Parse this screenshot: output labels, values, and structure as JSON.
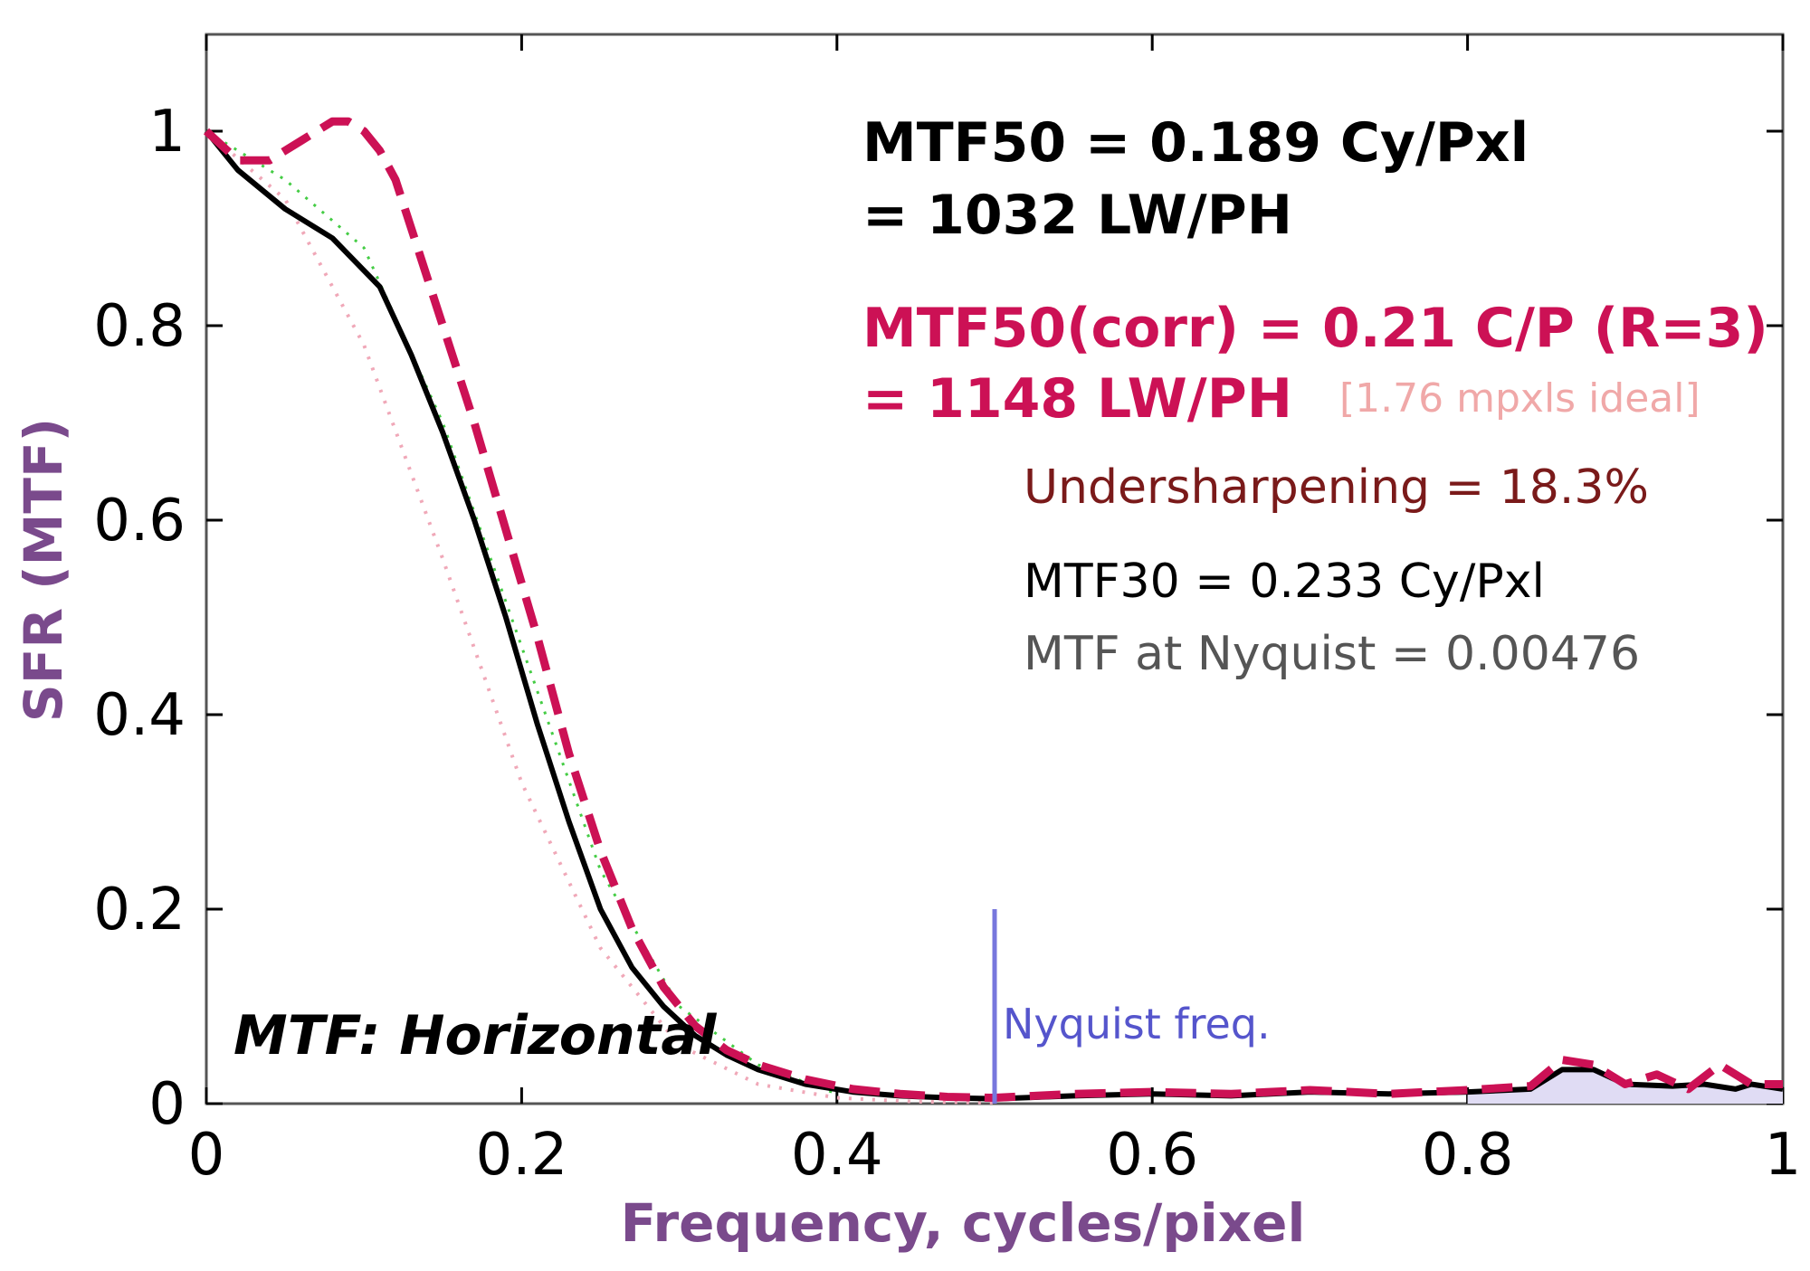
{
  "chart_data": {
    "type": "line",
    "xlabel": "Frequency, cycles/pixel",
    "ylabel": "SFR (MTF)",
    "xlim": [
      0,
      1
    ],
    "ylim": [
      0,
      1.1
    ],
    "x_ticks": [
      "0",
      "0.2",
      "0.4",
      "0.6",
      "0.8",
      "1"
    ],
    "y_ticks": [
      "0",
      "0.2",
      "0.4",
      "0.6",
      "0.8",
      "1"
    ],
    "grid": false,
    "colors": {
      "measured": "#000000",
      "corrected": "#cc1155",
      "nyquist": "#7777dd",
      "pink_dotted": "#f0a8b8",
      "green_dotted": "#44cc44",
      "ylabel": "#7a4a8c"
    },
    "series": [
      {
        "x": [
          0,
          0.02,
          0.05,
          0.08,
          0.11,
          0.13,
          0.15,
          0.17,
          0.19,
          0.21,
          0.23,
          0.25,
          0.27,
          0.29,
          0.31,
          0.33,
          0.35,
          0.38,
          0.41,
          0.44,
          0.47,
          0.5,
          0.55,
          0.6,
          0.65,
          0.7,
          0.75,
          0.8,
          0.84,
          0.86,
          0.88,
          0.9,
          0.93,
          0.95,
          0.97,
          0.98,
          1.0
        ],
        "values": [
          1.0,
          0.96,
          0.92,
          0.89,
          0.84,
          0.77,
          0.69,
          0.6,
          0.5,
          0.39,
          0.29,
          0.2,
          0.14,
          0.1,
          0.07,
          0.05,
          0.035,
          0.02,
          0.012,
          0.008,
          0.006,
          0.005,
          0.008,
          0.01,
          0.008,
          0.012,
          0.01,
          0.012,
          0.015,
          0.035,
          0.035,
          0.02,
          0.018,
          0.02,
          0.015,
          0.02,
          0.015
        ]
      },
      {
        "x": [
          0,
          0.02,
          0.04,
          0.06,
          0.08,
          0.09,
          0.1,
          0.11,
          0.12,
          0.13,
          0.15,
          0.17,
          0.19,
          0.21,
          0.23,
          0.25,
          0.27,
          0.29,
          0.31,
          0.33,
          0.35,
          0.38,
          0.41,
          0.44,
          0.47,
          0.5,
          0.55,
          0.6,
          0.65,
          0.7,
          0.75,
          0.8,
          0.84,
          0.86,
          0.88,
          0.9,
          0.92,
          0.94,
          0.96,
          0.98,
          1.0
        ],
        "values": [
          1.0,
          0.97,
          0.97,
          0.99,
          1.01,
          1.01,
          1.0,
          0.98,
          0.95,
          0.9,
          0.8,
          0.7,
          0.59,
          0.48,
          0.36,
          0.26,
          0.18,
          0.12,
          0.08,
          0.055,
          0.04,
          0.025,
          0.015,
          0.01,
          0.007,
          0.006,
          0.01,
          0.012,
          0.01,
          0.014,
          0.01,
          0.014,
          0.018,
          0.045,
          0.04,
          0.02,
          0.03,
          0.015,
          0.04,
          0.02,
          0.02
        ]
      },
      {
        "x": [
          0,
          0.05,
          0.1,
          0.15,
          0.2,
          0.25,
          0.3,
          0.35,
          0.4,
          0.45,
          0.5
        ],
        "values": [
          1.0,
          0.93,
          0.78,
          0.56,
          0.33,
          0.16,
          0.06,
          0.02,
          0.006,
          0.002,
          0.001
        ]
      },
      {
        "x": [
          0,
          0.05,
          0.1,
          0.15,
          0.2,
          0.25,
          0.3,
          0.35,
          0.4
        ],
        "values": [
          1.0,
          0.95,
          0.88,
          0.7,
          0.47,
          0.24,
          0.1,
          0.04,
          0.01
        ]
      }
    ],
    "nyquist_x": 0.5,
    "nyquist_top": 0.2
  },
  "annotations": {
    "mtf50_line1": "MTF50 = 0.189 Cy/Pxl",
    "mtf50_line2": "= 1032 LW/PH",
    "mtf50corr_line1": "MTF50(corr) = 0.21 C/P  (R=3)",
    "mtf50corr_line2": "= 1148 LW/PH",
    "ideal": "[1.76 mpxls ideal]",
    "undersharpening": "Undersharpening = 18.3%",
    "mtf30": "MTF30 = 0.233 Cy/Pxl",
    "nyquist_mtf": "MTF at Nyquist = 0.00476",
    "nyquist_label": "Nyquist freq.",
    "direction": "MTF: Horizontal"
  }
}
